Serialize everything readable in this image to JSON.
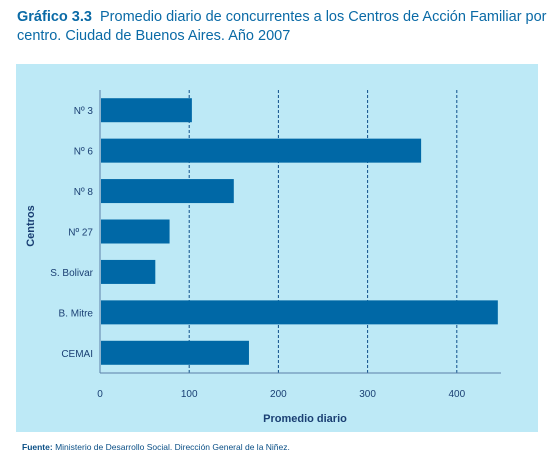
{
  "header": {
    "number": "Gráfico 3.3",
    "text": "Promedio diario de concurrentes a los Centros de Acción Familiar por centro. Ciudad de Buenos Aires. Año 2007"
  },
  "footer": {
    "label": "Fuente:",
    "text": "Ministerio de Desarrollo Social. Dirección General de la Niñez."
  },
  "colors": {
    "bar": "#0068a6",
    "panel": "#bde9f6",
    "title": "#0a6aa6",
    "text": "#1a3f73"
  },
  "chart_data": {
    "type": "bar",
    "orientation": "horizontal",
    "categories": [
      "Nº 3",
      "Nº 6",
      "Nº 8",
      "Nº 27",
      "S. Bolivar",
      "B.  Mitre",
      "CEMAI"
    ],
    "values": [
      103,
      360,
      150,
      78,
      62,
      446,
      167
    ],
    "xlabel": "Promedio diario",
    "ylabel": "Centros",
    "xlim": [
      0,
      450
    ],
    "xticks": [
      0,
      100,
      200,
      300,
      400
    ],
    "grid": "vertical dashed"
  }
}
